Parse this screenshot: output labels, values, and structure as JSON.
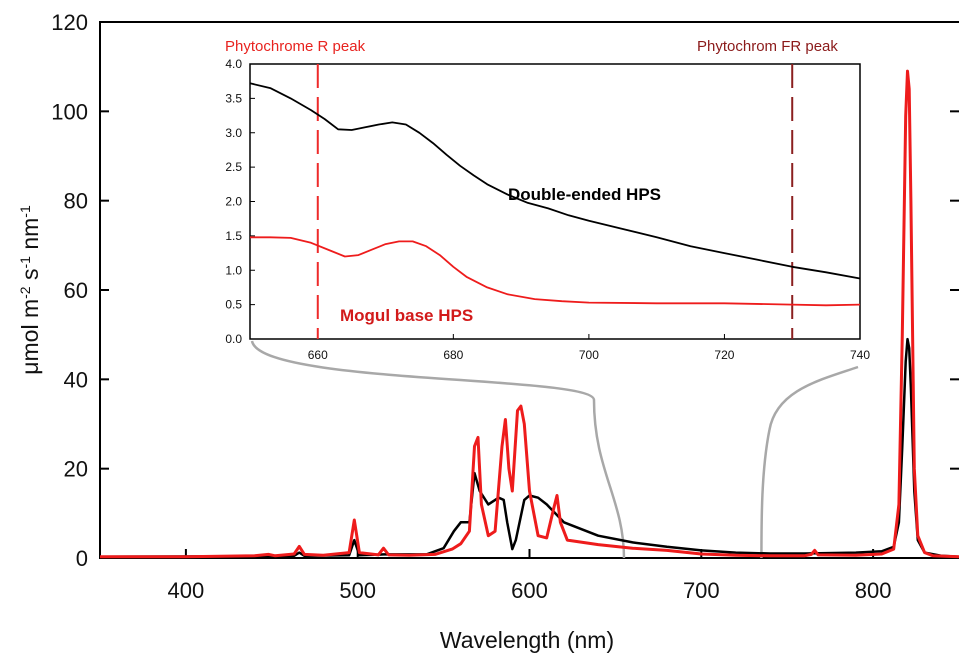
{
  "colors": {
    "double_ended": "#000000",
    "mogul": "#ee1c1c",
    "phyto_r": "#ee2a2a",
    "phyto_fr": "#8b1f1f",
    "zoom_connector": "#a8a8a8"
  },
  "chart_data": [
    {
      "type": "line",
      "xlabel": "Wavelength (nm)",
      "ylabel_parts": [
        "μmol m",
        "-2",
        " s",
        "-1",
        " nm",
        "-1"
      ],
      "xlim": [
        350,
        850
      ],
      "ylim": [
        0,
        120
      ],
      "xticks": [
        400,
        500,
        600,
        700,
        800
      ],
      "yticks": [
        0,
        20,
        40,
        60,
        80,
        100,
        120
      ],
      "grid": false,
      "series": [
        {
          "key": "mogul",
          "points": [
            [
              350,
              0.3
            ],
            [
              400,
              0.3
            ],
            [
              440,
              0.5
            ],
            [
              448,
              0.8
            ],
            [
              452,
              0.5
            ],
            [
              463,
              0.9
            ],
            [
              466,
              2.6
            ],
            [
              469,
              0.8
            ],
            [
              480,
              0.6
            ],
            [
              495,
              1.2
            ],
            [
              498,
              8.5
            ],
            [
              501,
              1.2
            ],
            [
              512,
              0.7
            ],
            [
              515,
              2.2
            ],
            [
              518,
              0.7
            ],
            [
              530,
              0.6
            ],
            [
              545,
              0.8
            ],
            [
              555,
              2
            ],
            [
              560,
              3.2
            ],
            [
              565,
              6
            ],
            [
              568,
              25
            ],
            [
              570,
              27
            ],
            [
              572,
              12
            ],
            [
              576,
              5
            ],
            [
              580,
              6
            ],
            [
              584,
              25
            ],
            [
              586,
              31
            ],
            [
              588,
              20
            ],
            [
              590,
              15
            ],
            [
              593,
              33
            ],
            [
              595,
              34
            ],
            [
              597,
              30
            ],
            [
              600,
              15
            ],
            [
              605,
              5
            ],
            [
              610,
              4.5
            ],
            [
              614,
              11
            ],
            [
              616,
              14
            ],
            [
              618,
              8
            ],
            [
              622,
              4
            ],
            [
              640,
              3
            ],
            [
              660,
              2.2
            ],
            [
              680,
              1.7
            ],
            [
              700,
              0.9
            ],
            [
              720,
              0.6
            ],
            [
              740,
              0.5
            ],
            [
              760,
              0.5
            ],
            [
              764,
              0.8
            ],
            [
              766,
              1.7
            ],
            [
              768,
              0.7
            ],
            [
              790,
              0.6
            ],
            [
              805,
              0.9
            ],
            [
              812,
              2
            ],
            [
              815,
              12
            ],
            [
              817,
              50
            ],
            [
              819,
              99
            ],
            [
              820,
              109
            ],
            [
              821,
              105
            ],
            [
              822,
              80
            ],
            [
              824,
              20
            ],
            [
              826,
              5
            ],
            [
              830,
              1.2
            ],
            [
              835,
              0.5
            ],
            [
              850,
              0.3
            ]
          ]
        },
        {
          "key": "double_ended",
          "points": [
            [
              350,
              0.3
            ],
            [
              440,
              0.4
            ],
            [
              463,
              0.5
            ],
            [
              466,
              1.2
            ],
            [
              469,
              0.5
            ],
            [
              495,
              0.6
            ],
            [
              498,
              4
            ],
            [
              501,
              0.6
            ],
            [
              515,
              0.8
            ],
            [
              540,
              0.8
            ],
            [
              550,
              2.2
            ],
            [
              556,
              6
            ],
            [
              560,
              8
            ],
            [
              565,
              8
            ],
            [
              568,
              19
            ],
            [
              571,
              15
            ],
            [
              576,
              12
            ],
            [
              582,
              13.5
            ],
            [
              585,
              13
            ],
            [
              587,
              8
            ],
            [
              590,
              2
            ],
            [
              592,
              4
            ],
            [
              597,
              13
            ],
            [
              600,
              14
            ],
            [
              605,
              13.5
            ],
            [
              610,
              12
            ],
            [
              620,
              8
            ],
            [
              640,
              5
            ],
            [
              660,
              3.5
            ],
            [
              680,
              2.5
            ],
            [
              700,
              1.7
            ],
            [
              720,
              1.2
            ],
            [
              740,
              1
            ],
            [
              760,
              1
            ],
            [
              790,
              1.2
            ],
            [
              805,
              1.5
            ],
            [
              812,
              2.5
            ],
            [
              815,
              8
            ],
            [
              817,
              25
            ],
            [
              819,
              44
            ],
            [
              820,
              49
            ],
            [
              821,
              47
            ],
            [
              822,
              38
            ],
            [
              824,
              15
            ],
            [
              826,
              4
            ],
            [
              830,
              1.2
            ],
            [
              840,
              0.5
            ],
            [
              850,
              0.3
            ]
          ]
        }
      ]
    },
    {
      "type": "line",
      "xlim": [
        650,
        740
      ],
      "ylim": [
        0,
        4
      ],
      "xticks": [
        660,
        680,
        700,
        720,
        740
      ],
      "yticks": [
        0.0,
        0.5,
        1.0,
        1.5,
        2.0,
        2.5,
        3.0,
        3.5,
        4.0
      ],
      "ytick_labels": [
        "0.0",
        "0.5",
        "1.0",
        "1.5",
        "2.0",
        "2.5",
        "3.0",
        "3.5",
        "4.0"
      ],
      "grid": false,
      "annotations": {
        "phyto_r_label": "Phytochrome R peak",
        "phyto_r_x": 660,
        "phyto_fr_label": "Phytochrom FR peak",
        "phyto_fr_x": 730
      },
      "series": [
        {
          "key": "double_ended",
          "name": "Double-ended HPS",
          "points": [
            [
              650,
              3.72
            ],
            [
              653,
              3.65
            ],
            [
              656,
              3.5
            ],
            [
              659,
              3.33
            ],
            [
              661,
              3.2
            ],
            [
              663,
              3.05
            ],
            [
              665,
              3.04
            ],
            [
              667,
              3.08
            ],
            [
              669,
              3.12
            ],
            [
              671,
              3.15
            ],
            [
              673,
              3.12
            ],
            [
              675,
              3.0
            ],
            [
              677,
              2.85
            ],
            [
              679,
              2.68
            ],
            [
              681,
              2.52
            ],
            [
              683,
              2.38
            ],
            [
              685,
              2.25
            ],
            [
              688,
              2.1
            ],
            [
              691,
              1.98
            ],
            [
              694,
              1.9
            ],
            [
              697,
              1.8
            ],
            [
              700,
              1.72
            ],
            [
              705,
              1.6
            ],
            [
              710,
              1.48
            ],
            [
              715,
              1.35
            ],
            [
              720,
              1.25
            ],
            [
              725,
              1.15
            ],
            [
              730,
              1.05
            ],
            [
              735,
              0.97
            ],
            [
              740,
              0.88
            ]
          ]
        },
        {
          "key": "mogul",
          "name": "Mogul base HPS",
          "points": [
            [
              650,
              1.48
            ],
            [
              653,
              1.48
            ],
            [
              656,
              1.47
            ],
            [
              659,
              1.4
            ],
            [
              662,
              1.28
            ],
            [
              664,
              1.2
            ],
            [
              666,
              1.22
            ],
            [
              668,
              1.3
            ],
            [
              670,
              1.38
            ],
            [
              672,
              1.42
            ],
            [
              674,
              1.42
            ],
            [
              676,
              1.35
            ],
            [
              678,
              1.22
            ],
            [
              680,
              1.05
            ],
            [
              682,
              0.9
            ],
            [
              685,
              0.75
            ],
            [
              688,
              0.65
            ],
            [
              692,
              0.58
            ],
            [
              696,
              0.55
            ],
            [
              700,
              0.53
            ],
            [
              710,
              0.52
            ],
            [
              720,
              0.52
            ],
            [
              730,
              0.5
            ],
            [
              735,
              0.49
            ],
            [
              740,
              0.5
            ]
          ]
        }
      ]
    }
  ]
}
